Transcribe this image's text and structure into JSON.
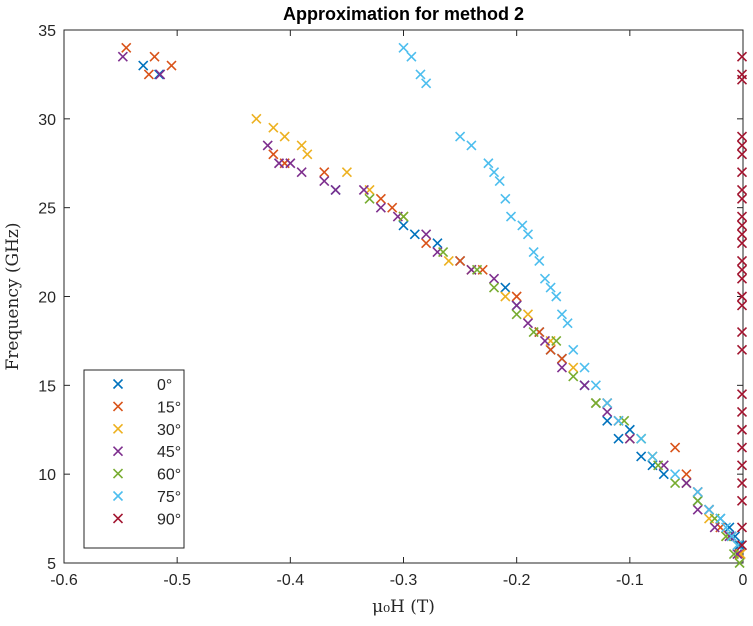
{
  "chart_data": {
    "type": "scatter",
    "title": "Approximation for method 2",
    "xlabel": "μ₀H (T)",
    "ylabel": "Frequency (GHz)",
    "xlim": [
      -0.6,
      0
    ],
    "ylim": [
      5,
      35
    ],
    "xticks": [
      "-0.6",
      "-0.5",
      "-0.4",
      "-0.3",
      "-0.2",
      "-0.1",
      "0"
    ],
    "yticks": [
      "5",
      "10",
      "15",
      "20",
      "25",
      "30",
      "35"
    ],
    "grid": false,
    "legend_position": "bottom-left",
    "series": [
      {
        "name": "0°",
        "color": "#0072BD",
        "points": [
          [
            -0.53,
            33
          ],
          [
            -0.516,
            32.5
          ],
          [
            -0.36,
            26
          ],
          [
            -0.3,
            24
          ],
          [
            -0.29,
            23.5
          ],
          [
            -0.27,
            23
          ],
          [
            -0.25,
            22
          ],
          [
            -0.21,
            20.5
          ],
          [
            -0.2,
            19.5
          ],
          [
            -0.18,
            18
          ],
          [
            -0.17,
            17
          ],
          [
            -0.16,
            16.5
          ],
          [
            -0.14,
            15
          ],
          [
            -0.13,
            14
          ],
          [
            -0.12,
            13
          ],
          [
            -0.11,
            12
          ],
          [
            -0.1,
            12.5
          ],
          [
            -0.09,
            11
          ],
          [
            -0.08,
            10.5
          ],
          [
            -0.07,
            10
          ],
          [
            -0.05,
            9.5
          ],
          [
            -0.04,
            8.5
          ],
          [
            -0.03,
            8
          ],
          [
            -0.02,
            7.5
          ],
          [
            -0.012,
            7
          ],
          [
            -0.007,
            6.5
          ],
          [
            -0.003,
            6
          ]
        ]
      },
      {
        "name": "15°",
        "color": "#D95319",
        "points": [
          [
            -0.545,
            34
          ],
          [
            -0.52,
            33.5
          ],
          [
            -0.505,
            33
          ],
          [
            -0.525,
            32.5
          ],
          [
            -0.415,
            28
          ],
          [
            -0.405,
            27.5
          ],
          [
            -0.37,
            27
          ],
          [
            -0.32,
            25.5
          ],
          [
            -0.31,
            25
          ],
          [
            -0.28,
            23
          ],
          [
            -0.25,
            22
          ],
          [
            -0.23,
            21.5
          ],
          [
            -0.2,
            20
          ],
          [
            -0.18,
            18
          ],
          [
            -0.17,
            17
          ],
          [
            -0.16,
            16.5
          ],
          [
            -0.12,
            14
          ],
          [
            -0.11,
            13
          ],
          [
            -0.06,
            11.5
          ],
          [
            -0.05,
            10
          ],
          [
            -0.04,
            9
          ],
          [
            -0.03,
            8
          ],
          [
            -0.02,
            7
          ],
          [
            -0.01,
            6.5
          ],
          [
            -0.003,
            5.5
          ]
        ]
      },
      {
        "name": "30°",
        "color": "#EDB120",
        "points": [
          [
            -0.43,
            30
          ],
          [
            -0.415,
            29.5
          ],
          [
            -0.405,
            29
          ],
          [
            -0.39,
            28.5
          ],
          [
            -0.385,
            28
          ],
          [
            -0.35,
            27
          ],
          [
            -0.33,
            26
          ],
          [
            -0.3,
            24.5
          ],
          [
            -0.26,
            22
          ],
          [
            -0.24,
            21.5
          ],
          [
            -0.21,
            20
          ],
          [
            -0.19,
            19
          ],
          [
            -0.17,
            17.5
          ],
          [
            -0.15,
            16
          ],
          [
            -0.13,
            14
          ],
          [
            -0.1,
            12
          ],
          [
            -0.08,
            11
          ],
          [
            -0.05,
            9.5
          ],
          [
            -0.03,
            7.5
          ],
          [
            -0.015,
            6.5
          ],
          [
            -0.005,
            6
          ],
          [
            -0.002,
            5.5
          ]
        ]
      },
      {
        "name": "45°",
        "color": "#7E2F8E",
        "points": [
          [
            -0.548,
            33.5
          ],
          [
            -0.515,
            32.5
          ],
          [
            -0.42,
            28.5
          ],
          [
            -0.41,
            27.5
          ],
          [
            -0.4,
            27.5
          ],
          [
            -0.39,
            27
          ],
          [
            -0.37,
            26.5
          ],
          [
            -0.36,
            26
          ],
          [
            -0.335,
            26
          ],
          [
            -0.32,
            25
          ],
          [
            -0.305,
            24.5
          ],
          [
            -0.28,
            23.5
          ],
          [
            -0.27,
            22.5
          ],
          [
            -0.24,
            21.5
          ],
          [
            -0.22,
            21
          ],
          [
            -0.2,
            19.5
          ],
          [
            -0.19,
            18.5
          ],
          [
            -0.175,
            17.5
          ],
          [
            -0.16,
            16
          ],
          [
            -0.14,
            15
          ],
          [
            -0.12,
            13.5
          ],
          [
            -0.1,
            12
          ],
          [
            -0.07,
            10.5
          ],
          [
            -0.05,
            9.5
          ],
          [
            -0.04,
            8
          ],
          [
            -0.025,
            7
          ],
          [
            -0.012,
            6.5
          ],
          [
            -0.005,
            5.5
          ]
        ]
      },
      {
        "name": "60°",
        "color": "#77AC30",
        "points": [
          [
            -0.33,
            25.5
          ],
          [
            -0.3,
            24.5
          ],
          [
            -0.265,
            22.5
          ],
          [
            -0.235,
            21.5
          ],
          [
            -0.22,
            20.5
          ],
          [
            -0.2,
            19
          ],
          [
            -0.185,
            18
          ],
          [
            -0.165,
            17.5
          ],
          [
            -0.15,
            15.5
          ],
          [
            -0.13,
            14
          ],
          [
            -0.105,
            13
          ],
          [
            -0.09,
            12
          ],
          [
            -0.075,
            10.5
          ],
          [
            -0.06,
            9.5
          ],
          [
            -0.04,
            8.5
          ],
          [
            -0.025,
            7.5
          ],
          [
            -0.015,
            6.5
          ],
          [
            -0.008,
            5.5
          ],
          [
            -0.003,
            5
          ]
        ]
      },
      {
        "name": "75°",
        "color": "#4DBEEE",
        "points": [
          [
            -0.3,
            34
          ],
          [
            -0.293,
            33.5
          ],
          [
            -0.285,
            32.5
          ],
          [
            -0.28,
            32
          ],
          [
            -0.25,
            29
          ],
          [
            -0.24,
            28.5
          ],
          [
            -0.225,
            27.5
          ],
          [
            -0.22,
            27
          ],
          [
            -0.215,
            26.5
          ],
          [
            -0.21,
            25.5
          ],
          [
            -0.205,
            24.5
          ],
          [
            -0.195,
            24
          ],
          [
            -0.19,
            23.5
          ],
          [
            -0.185,
            22.5
          ],
          [
            -0.18,
            22
          ],
          [
            -0.175,
            21
          ],
          [
            -0.17,
            20.5
          ],
          [
            -0.165,
            20
          ],
          [
            -0.16,
            19
          ],
          [
            -0.155,
            18.5
          ],
          [
            -0.15,
            17
          ],
          [
            -0.14,
            16
          ],
          [
            -0.13,
            15
          ],
          [
            -0.12,
            14
          ],
          [
            -0.11,
            13
          ],
          [
            -0.09,
            12
          ],
          [
            -0.08,
            11
          ],
          [
            -0.06,
            10
          ],
          [
            -0.04,
            9
          ],
          [
            -0.03,
            8
          ],
          [
            -0.02,
            7.5
          ],
          [
            -0.015,
            7
          ],
          [
            -0.01,
            6.5
          ],
          [
            -0.005,
            6
          ]
        ]
      },
      {
        "name": "90°",
        "color": "#A2142F",
        "points": [
          [
            0,
            33.5
          ],
          [
            0,
            32.5
          ],
          [
            0,
            32.2
          ],
          [
            0,
            29
          ],
          [
            0,
            28.5
          ],
          [
            0,
            28
          ],
          [
            0,
            27
          ],
          [
            0,
            26
          ],
          [
            0,
            25.5
          ],
          [
            0,
            24.5
          ],
          [
            0,
            24
          ],
          [
            0,
            23.5
          ],
          [
            0,
            23
          ],
          [
            0,
            22
          ],
          [
            0,
            21.5
          ],
          [
            0,
            21
          ],
          [
            0,
            20
          ],
          [
            0,
            19.5
          ],
          [
            0,
            18
          ],
          [
            0,
            17
          ],
          [
            0,
            14.5
          ],
          [
            0,
            13.5
          ],
          [
            0,
            12.5
          ],
          [
            0,
            11.5
          ],
          [
            0,
            10.5
          ],
          [
            0,
            9.5
          ],
          [
            0,
            8.5
          ],
          [
            0,
            7
          ],
          [
            0,
            6
          ]
        ]
      }
    ]
  }
}
